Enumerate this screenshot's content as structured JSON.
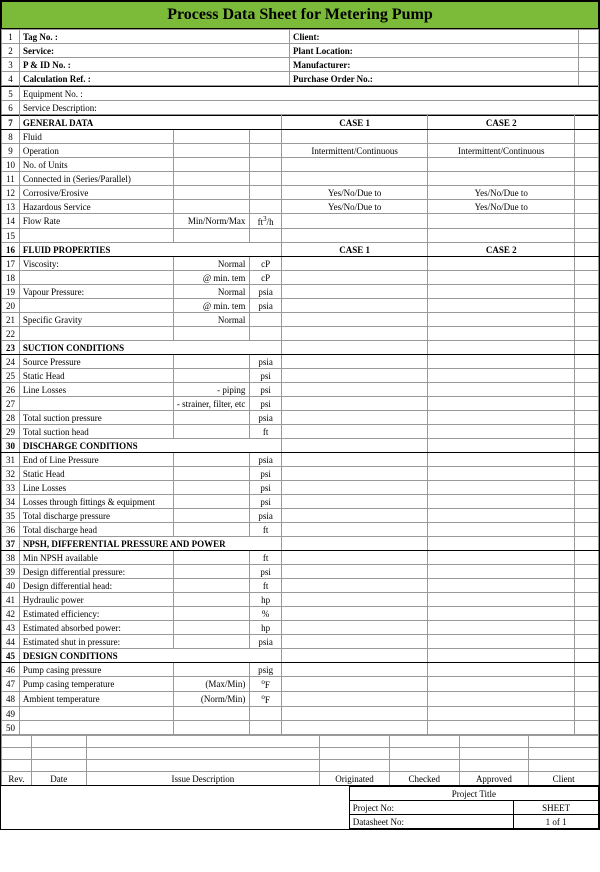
{
  "title": "Process Data Sheet for Metering Pump",
  "header_left": [
    {
      "n": "1",
      "label": "Tag No. :",
      "bold": true
    },
    {
      "n": "2",
      "label": "Service:",
      "bold": true
    },
    {
      "n": "3",
      "label": "P & ID No. :",
      "bold": true
    },
    {
      "n": "4",
      "label": "Calculation Ref. :",
      "bold": true
    }
  ],
  "header_right": [
    {
      "label": "Client:",
      "bold": true
    },
    {
      "label": "Plant Location:",
      "bold": true
    },
    {
      "label": "Manufacturer:",
      "bold": true
    },
    {
      "label": "Purchase Order No.:",
      "bold": true
    }
  ],
  "equip_rows": [
    {
      "n": "5",
      "label": "Equipment No. :"
    },
    {
      "n": "6",
      "label": "Service Description:"
    }
  ],
  "general": {
    "n": "7",
    "title": "GENERAL DATA",
    "case1": "CASE 1",
    "case2": "CASE 2",
    "rows": [
      {
        "n": "8",
        "label": "Fluid",
        "sub": "",
        "unit": "",
        "v1": "",
        "v2": ""
      },
      {
        "n": "9",
        "label": "Operation",
        "sub": "",
        "unit": "",
        "v1": "Intermittent/Continuous",
        "v2": "Intermittent/Continuous"
      },
      {
        "n": "10",
        "label": "No. of Units",
        "sub": "",
        "unit": "",
        "v1": "",
        "v2": ""
      },
      {
        "n": "11",
        "label": "Connected in (Series/Parallel)",
        "sub": "",
        "unit": "",
        "v1": "",
        "v2": ""
      },
      {
        "n": "12",
        "label": "Corrosive/Erosive",
        "sub": "",
        "unit": "",
        "v1": "Yes/No/Due to",
        "v2": "Yes/No/Due to"
      },
      {
        "n": "13",
        "label": "Hazardous Service",
        "sub": "",
        "unit": "",
        "v1": "Yes/No/Due to",
        "v2": "Yes/No/Due to"
      },
      {
        "n": "14",
        "label": "Flow Rate",
        "sub": "Min/Norm/Max",
        "unit": "ft³/h",
        "v1": "",
        "v2": ""
      },
      {
        "n": "15",
        "label": "",
        "sub": "",
        "unit": "",
        "v1": "",
        "v2": ""
      }
    ]
  },
  "fluid": {
    "n": "16",
    "title": "FLUID PROPERTIES",
    "case1": "CASE 1",
    "case2": "CASE 2",
    "rows": [
      {
        "n": "17",
        "label": "Viscosity:",
        "sub": "Normal",
        "unit": "cP"
      },
      {
        "n": "18",
        "label": "",
        "sub": "@ min. tem",
        "unit": "cP"
      },
      {
        "n": "19",
        "label": "Vapour Pressure:",
        "sub": "Normal",
        "unit": "psia"
      },
      {
        "n": "20",
        "label": "",
        "sub": "@ min. tem",
        "unit": "psia"
      },
      {
        "n": "21",
        "label": "Specific Gravity",
        "sub": "Normal",
        "unit": ""
      },
      {
        "n": "22",
        "label": "",
        "sub": "",
        "unit": ""
      }
    ]
  },
  "suction": {
    "n": "23",
    "title": "SUCTION CONDITIONS",
    "rows": [
      {
        "n": "24",
        "label": "Source Pressure",
        "sub": "",
        "unit": "psia"
      },
      {
        "n": "25",
        "label": "Static Head",
        "sub": "",
        "unit": "psi"
      },
      {
        "n": "26",
        "label": "Line Losses",
        "sub": "- piping",
        "unit": "psi"
      },
      {
        "n": "27",
        "label": "",
        "sub": "- strainer, filter, etc",
        "unit": "psi"
      },
      {
        "n": "28",
        "label": "Total suction pressure",
        "sub": "",
        "unit": "psia"
      },
      {
        "n": "29",
        "label": "Total suction head",
        "sub": "",
        "unit": "ft"
      }
    ]
  },
  "discharge": {
    "n": "30",
    "title": "DISCHARGE CONDITIONS",
    "rows": [
      {
        "n": "31",
        "label": "End of Line Pressure",
        "sub": "",
        "unit": "psia"
      },
      {
        "n": "32",
        "label": "Static Head",
        "sub": "",
        "unit": "psi"
      },
      {
        "n": "33",
        "label": "Line Losses",
        "sub": "",
        "unit": "psi"
      },
      {
        "n": "34",
        "label": "Losses through fittings & equipment",
        "sub": "",
        "unit": "psi"
      },
      {
        "n": "35",
        "label": "Total discharge pressure",
        "sub": "",
        "unit": "psia"
      },
      {
        "n": "36",
        "label": "Total discharge head",
        "sub": "",
        "unit": "ft"
      }
    ]
  },
  "npsh": {
    "n": "37",
    "title": "NPSH, DIFFERENTIAL PRESSURE AND POWER",
    "rows": [
      {
        "n": "38",
        "label": "Min NPSH available",
        "sub": "",
        "unit": "ft"
      },
      {
        "n": "39",
        "label": "Design differential pressure:",
        "sub": "",
        "unit": "psi"
      },
      {
        "n": "40",
        "label": "Design differential head:",
        "sub": "",
        "unit": "ft"
      },
      {
        "n": "41",
        "label": "Hydraulic power",
        "sub": "",
        "unit": "hp"
      },
      {
        "n": "42",
        "label": "Estimated efficiency:",
        "sub": "",
        "unit": "%"
      },
      {
        "n": "43",
        "label": "Estimated absorbed power:",
        "sub": "",
        "unit": "hp"
      },
      {
        "n": "44",
        "label": "Estimated shut in pressure:",
        "sub": "",
        "unit": "psia"
      }
    ]
  },
  "design": {
    "n": "45",
    "title": "DESIGN CONDITIONS",
    "rows": [
      {
        "n": "46",
        "label": "Pump casing pressure",
        "sub": "",
        "unit": "psig"
      },
      {
        "n": "47",
        "label": "Pump casing temperature",
        "sub": "(Max/Min)",
        "unit": "°F"
      },
      {
        "n": "48",
        "label": "Ambient temperature",
        "sub": "(Norm/Min)",
        "unit": "°F"
      },
      {
        "n": "49",
        "label": "",
        "sub": "",
        "unit": ""
      },
      {
        "n": "50",
        "label": "",
        "sub": "",
        "unit": ""
      }
    ]
  },
  "rev_header": {
    "rev": "Rev.",
    "date": "Date",
    "desc": "Issue Description",
    "orig": "Originated",
    "checked": "Checked",
    "approved": "Approved",
    "client": "Client"
  },
  "project": {
    "title_label": "Project Title",
    "no_label": "Project No:",
    "sheet_label": "SHEET",
    "ds_label": "Datasheet No:",
    "page": "1   of   1"
  }
}
